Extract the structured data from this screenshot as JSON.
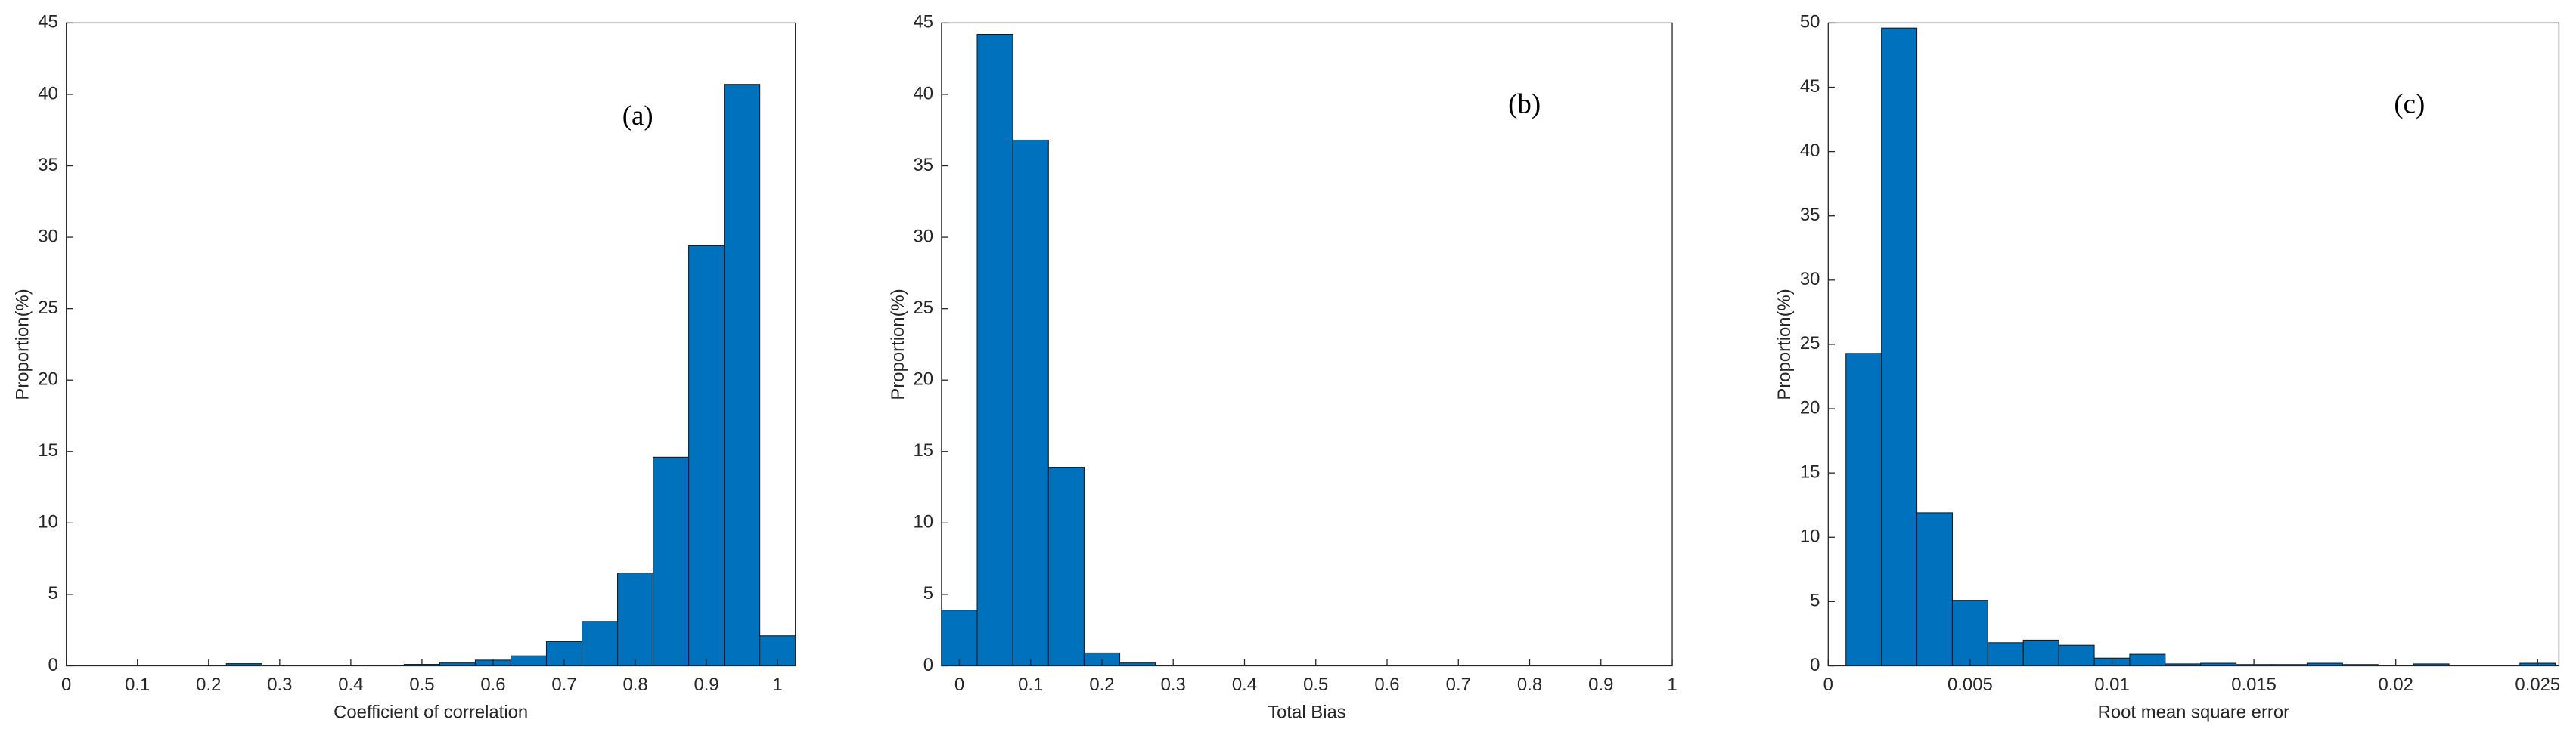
{
  "chart_data": [
    {
      "type": "histogram",
      "annotation": "(a)",
      "xlabel": "Coefficient of correlation",
      "ylabel": "Proportion(%)",
      "color": "#0072BD",
      "bins": [
        0.225,
        0.275,
        0.325,
        0.375,
        0.425,
        0.475,
        0.525,
        0.575,
        0.625,
        0.675,
        0.725,
        0.775,
        0.825,
        0.875,
        0.925,
        0.975,
        1.025
      ],
      "values": [
        0.15,
        0,
        0,
        0,
        0.05,
        0.1,
        0.2,
        0.4,
        0.7,
        1.7,
        3.1,
        6.5,
        14.6,
        29.4,
        40.7,
        2.1
      ],
      "xlim": [
        0,
        1.025
      ],
      "ylim": [
        0,
        45
      ],
      "xticks": [
        0,
        0.1,
        0.2,
        0.3,
        0.4,
        0.5,
        0.6,
        0.7,
        0.8,
        0.9,
        1
      ],
      "yticks": [
        0,
        5,
        10,
        15,
        20,
        25,
        30,
        35,
        40,
        45
      ]
    },
    {
      "type": "histogram",
      "annotation": "(b)",
      "xlabel": "Total Bias",
      "ylabel": "Proportion(%)",
      "color": "#0072BD",
      "bins": [
        -0.025,
        0.025,
        0.075,
        0.125,
        0.175,
        0.225,
        0.275
      ],
      "values": [
        3.9,
        44.2,
        36.8,
        13.9,
        0.9,
        0.2
      ],
      "xlim": [
        -0.025,
        1
      ],
      "ylim": [
        0,
        45
      ],
      "xticks": [
        0,
        0.1,
        0.2,
        0.3,
        0.4,
        0.5,
        0.6,
        0.7,
        0.8,
        0.9,
        1
      ],
      "yticks": [
        0,
        5,
        10,
        15,
        20,
        25,
        30,
        35,
        40,
        45
      ]
    },
    {
      "type": "histogram",
      "annotation": "(c)",
      "xlabel": "Root mean square error",
      "ylabel": "Proportion(%)",
      "color": "#0072BD",
      "bins": [
        0.000625,
        0.001875,
        0.003125,
        0.004375,
        0.005625,
        0.006875,
        0.008125,
        0.009375,
        0.010625,
        0.011875,
        0.013125,
        0.014375,
        0.015625,
        0.016875,
        0.018125,
        0.019375,
        0.020625,
        0.021875,
        0.023125,
        0.024375,
        0.025625
      ],
      "values": [
        24.3,
        49.6,
        11.9,
        5.1,
        1.8,
        2.0,
        1.6,
        0.6,
        0.9,
        0.15,
        0.2,
        0.1,
        0.1,
        0.2,
        0.1,
        0.05,
        0.15,
        0.05,
        0.05,
        0.2
      ],
      "xlim": [
        0,
        0.02575
      ],
      "ylim": [
        0,
        50
      ],
      "xticks": [
        0,
        0.005,
        0.01,
        0.015,
        0.02,
        0.025
      ],
      "yticks": [
        0,
        5,
        10,
        15,
        20,
        25,
        30,
        35,
        40,
        45,
        50
      ]
    }
  ]
}
